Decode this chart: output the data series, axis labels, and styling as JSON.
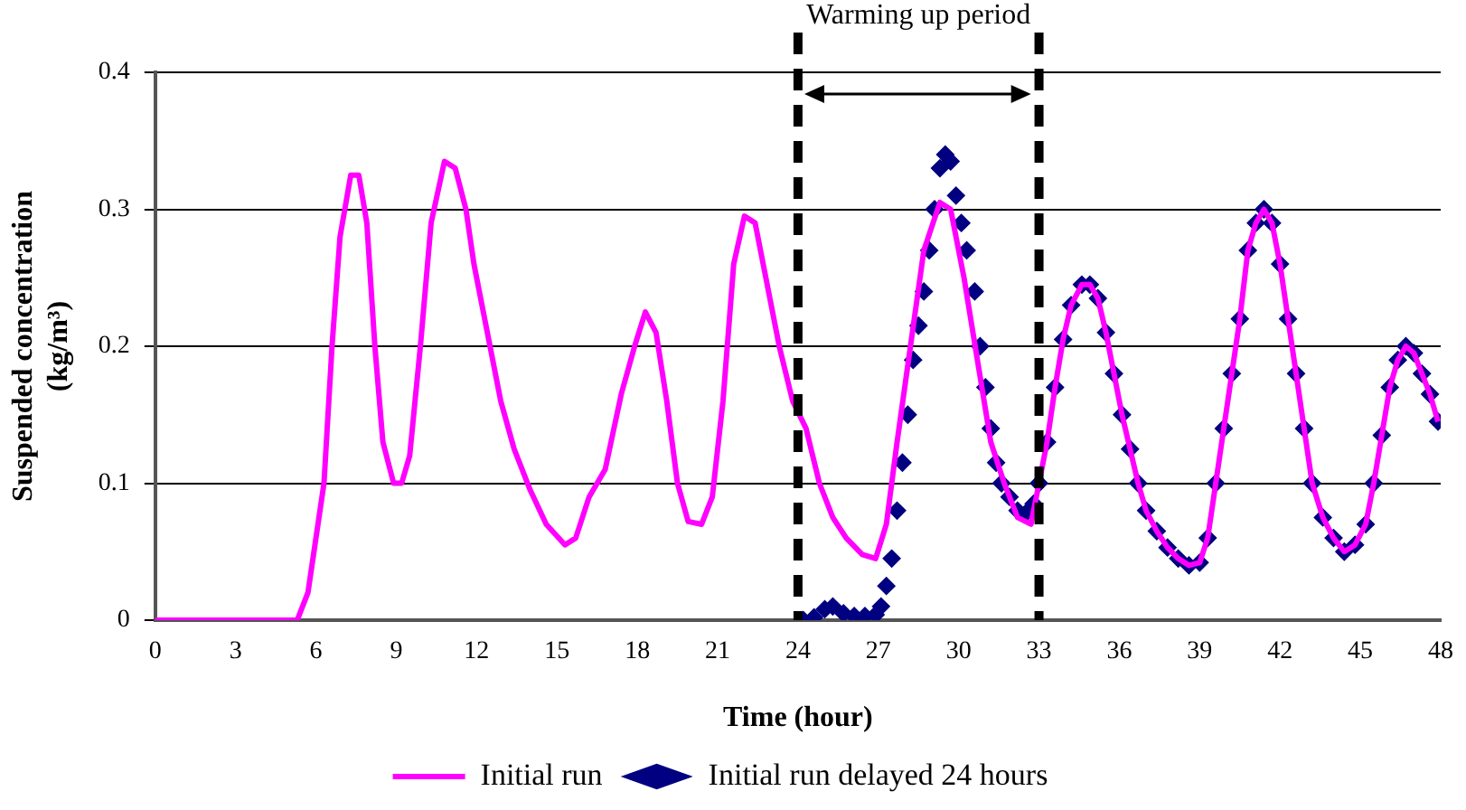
{
  "chart_data": {
    "type": "line",
    "xlabel": "Time (hour)",
    "ylabel": "Suspended concentration (kg/m³)",
    "xlim": [
      0,
      48
    ],
    "xticks": [
      0,
      3,
      6,
      9,
      12,
      15,
      18,
      21,
      24,
      27,
      30,
      33,
      36,
      39,
      42,
      45,
      48
    ],
    "ylim": [
      0,
      0.4
    ],
    "yticks": [
      0,
      0.1,
      0.2,
      0.3,
      0.4
    ],
    "grid": "y",
    "legend": "bottom",
    "annotations": [
      "Warming up period"
    ],
    "ref_lines": [
      {
        "axis": "x",
        "value": 24,
        "color": "#000000",
        "line_style": "dashed"
      },
      {
        "axis": "x",
        "value": 33,
        "color": "#000000",
        "line_style": "dashed"
      }
    ],
    "series": [
      {
        "name": "Initial run",
        "type": "line",
        "marker": "none",
        "color": "#ff00ff",
        "x": [
          0,
          5.3,
          5.7,
          6.3,
          6.6,
          6.9,
          7.3,
          7.6,
          7.9,
          8.2,
          8.5,
          8.9,
          9.2,
          9.5,
          9.9,
          10.3,
          10.8,
          11.2,
          11.6,
          11.9,
          12.4,
          12.9,
          13.4,
          14.0,
          14.6,
          15.3,
          15.7,
          16.2,
          16.8,
          17.4,
          17.9,
          18.3,
          18.7,
          19.1,
          19.5,
          19.9,
          20.4,
          20.8,
          21.2,
          21.6,
          22.0,
          22.4,
          22.8,
          23.3,
          23.8,
          24.3,
          24.8,
          25.3,
          25.8,
          26.4,
          26.9,
          27.3,
          27.7,
          28.2,
          28.7,
          29.3,
          29.7,
          30.2,
          30.7,
          31.2,
          31.7,
          32.2,
          32.7,
          33.0,
          33.3,
          33.6,
          33.9,
          34.2,
          34.6,
          34.9,
          35.2,
          35.5,
          35.8,
          36.1,
          36.4,
          36.7,
          37.0,
          37.4,
          37.8,
          38.2,
          38.6,
          39.0,
          39.3,
          39.6,
          39.9,
          40.2,
          40.5,
          40.8,
          41.1,
          41.4,
          41.7,
          42.0,
          42.3,
          42.6,
          42.9,
          43.2,
          43.6,
          44.0,
          44.4,
          44.8,
          45.2,
          45.5,
          45.8,
          46.1,
          46.4,
          46.7,
          47.0,
          47.3,
          47.6,
          47.9
        ],
        "values": [
          0,
          0,
          0.02,
          0.1,
          0.2,
          0.28,
          0.325,
          0.325,
          0.29,
          0.2,
          0.13,
          0.1,
          0.1,
          0.12,
          0.2,
          0.29,
          0.335,
          0.33,
          0.3,
          0.26,
          0.21,
          0.16,
          0.125,
          0.095,
          0.07,
          0.055,
          0.06,
          0.09,
          0.11,
          0.165,
          0.2,
          0.225,
          0.21,
          0.16,
          0.1,
          0.072,
          0.07,
          0.09,
          0.16,
          0.26,
          0.295,
          0.29,
          0.25,
          0.2,
          0.16,
          0.14,
          0.1,
          0.075,
          0.06,
          0.048,
          0.045,
          0.07,
          0.13,
          0.2,
          0.27,
          0.305,
          0.3,
          0.25,
          0.19,
          0.13,
          0.1,
          0.075,
          0.07,
          0.1,
          0.13,
          0.17,
          0.205,
          0.23,
          0.245,
          0.245,
          0.235,
          0.21,
          0.18,
          0.15,
          0.125,
          0.1,
          0.08,
          0.065,
          0.053,
          0.045,
          0.04,
          0.042,
          0.06,
          0.1,
          0.14,
          0.18,
          0.22,
          0.27,
          0.29,
          0.3,
          0.29,
          0.26,
          0.22,
          0.18,
          0.14,
          0.1,
          0.075,
          0.06,
          0.05,
          0.055,
          0.07,
          0.1,
          0.135,
          0.17,
          0.19,
          0.2,
          0.195,
          0.18,
          0.165,
          0.145
        ]
      },
      {
        "name": "Initial run delayed 24 hours",
        "type": "scatter",
        "marker": "diamond",
        "color": "#000080",
        "x": [
          24.2,
          24.6,
          25.0,
          25.3,
          25.7,
          26.1,
          26.5,
          26.9,
          27.1,
          27.3,
          27.5,
          27.7,
          27.9,
          28.1,
          28.3,
          28.5,
          28.7,
          28.9,
          29.1,
          29.3,
          29.5,
          29.7,
          29.9,
          30.1,
          30.3,
          30.6,
          30.8,
          31.0,
          31.2,
          31.4,
          31.6,
          31.9,
          32.2,
          32.5,
          32.8,
          33.0,
          33.3,
          33.6,
          33.9,
          34.2,
          34.6,
          34.9,
          35.2,
          35.5,
          35.8,
          36.1,
          36.4,
          36.7,
          37.0,
          37.4,
          37.8,
          38.2,
          38.6,
          39.0,
          39.3,
          39.6,
          39.9,
          40.2,
          40.5,
          40.8,
          41.1,
          41.4,
          41.7,
          42.0,
          42.3,
          42.6,
          42.9,
          43.2,
          43.6,
          44.0,
          44.4,
          44.8,
          45.2,
          45.5,
          45.8,
          46.1,
          46.4,
          46.7,
          47.0,
          47.3,
          47.6,
          47.9
        ],
        "values": [
          0,
          0.002,
          0.008,
          0.01,
          0.005,
          0.003,
          0.003,
          0.004,
          0.01,
          0.025,
          0.045,
          0.08,
          0.115,
          0.15,
          0.19,
          0.215,
          0.24,
          0.27,
          0.3,
          0.33,
          0.34,
          0.335,
          0.31,
          0.29,
          0.27,
          0.24,
          0.2,
          0.17,
          0.14,
          0.115,
          0.1,
          0.09,
          0.08,
          0.078,
          0.085,
          0.1,
          0.13,
          0.17,
          0.205,
          0.23,
          0.245,
          0.245,
          0.235,
          0.21,
          0.18,
          0.15,
          0.125,
          0.1,
          0.08,
          0.065,
          0.053,
          0.045,
          0.04,
          0.042,
          0.06,
          0.1,
          0.14,
          0.18,
          0.22,
          0.27,
          0.29,
          0.3,
          0.29,
          0.26,
          0.22,
          0.18,
          0.14,
          0.1,
          0.075,
          0.06,
          0.05,
          0.055,
          0.07,
          0.1,
          0.135,
          0.17,
          0.19,
          0.2,
          0.195,
          0.18,
          0.165,
          0.145
        ]
      }
    ]
  }
}
